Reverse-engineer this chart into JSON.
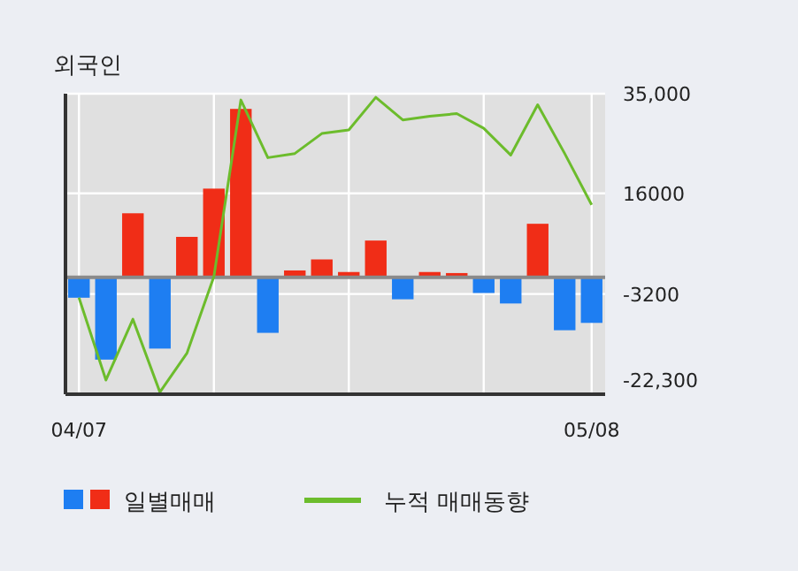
{
  "chart_data": {
    "type": "bar",
    "title": "외국인",
    "categories": [
      "04/07",
      null,
      null,
      null,
      null,
      null,
      null,
      null,
      null,
      null,
      null,
      null,
      null,
      null,
      null,
      null,
      null,
      null,
      null,
      "05/08"
    ],
    "series": [
      {
        "name": "일별매매",
        "colors": [
          "#1e7ef2",
          "#1e7ef2",
          "#f02d17",
          "#1e7ef2",
          "#f02d17",
          "#f02d17",
          "#f02d17",
          "#1e7ef2",
          "#f02d17",
          "#f02d17",
          "#f02d17",
          "#f02d17",
          "#1e7ef2",
          "#f02d17",
          "#f02d17",
          "#1e7ef2",
          "#1e7ef2",
          "#f02d17",
          "#1e7ef2",
          "#1e7ef2"
        ],
        "values": [
          -3900,
          -15700,
          12200,
          -13600,
          7700,
          16900,
          32100,
          -10600,
          1300,
          3400,
          1000,
          7000,
          -4200,
          1000,
          800,
          -3000,
          -5000,
          10200,
          -10100,
          -8700
        ]
      },
      {
        "name": "누적 매매동향",
        "type": "line",
        "color": "#6cbc2c",
        "values": [
          -3900,
          -19600,
          -8000,
          -21900,
          -14500,
          100,
          33800,
          22800,
          23600,
          27400,
          28100,
          34300,
          30000,
          30700,
          31200,
          28400,
          23300,
          32900,
          23600,
          13800
        ]
      }
    ],
    "ylim": [
      -22300,
      35000
    ],
    "yticks": [
      {
        "value": 35000,
        "label": "35,000"
      },
      {
        "value": 16000,
        "label": "16000"
      },
      {
        "value": -3200,
        "label": "-3200"
      },
      {
        "value": -22300,
        "label": "-22,300"
      }
    ],
    "grid": true,
    "legend": "bottom"
  }
}
